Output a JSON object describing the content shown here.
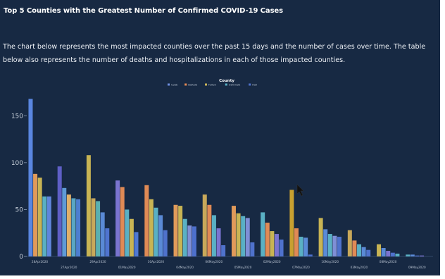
{
  "page": {
    "title": "Top 5 Counties with the Greatest Number of Confirmed COVID-19 Cases",
    "description": "The chart below represents the most impacted counties over the past 15 days and the number of cases over time. The table below also represents the number of deaths and hospitalizations in each of those impacted counties."
  },
  "chart_data": {
    "type": "bar",
    "legend_title": "County",
    "legend_position": "top-center",
    "categories": [
      "28Apr2020",
      "27Apr2020",
      "29Apr2020",
      "01May2020",
      "30Apr2020",
      "04May2020",
      "06May2020",
      "05May2020",
      "02May2020",
      "07May2020",
      "10May2020",
      "03May2020",
      "08May2020",
      "09May2020"
    ],
    "category_label_visible": [
      true,
      true,
      true,
      true,
      true,
      true,
      true,
      true,
      true,
      true,
      true,
      true,
      true,
      true
    ],
    "series": [
      {
        "name": "Cobb",
        "color": "#6f8fe0",
        "values": [
          168,
          96,
          108,
          81,
          76,
          55,
          66,
          54,
          47,
          71,
          41,
          28,
          13,
          2
        ]
      },
      {
        "name": "DeKalb",
        "color": "#e58a55",
        "values": [
          88,
          73,
          62,
          74,
          61,
          54,
          55,
          46,
          36,
          30,
          29,
          17,
          9,
          2
        ]
      },
      {
        "name": "Fulton",
        "color": "#c9b45a",
        "values": [
          84,
          66,
          59,
          50,
          52,
          40,
          44,
          43,
          27,
          21,
          24,
          13,
          6,
          1
        ]
      },
      {
        "name": "Gwinnett",
        "color": "#58b0c4",
        "values": [
          64,
          62,
          47,
          40,
          44,
          33,
          30,
          41,
          24,
          20,
          22,
          10,
          4,
          1
        ]
      },
      {
        "name": "Hall",
        "color": "#4f72cc",
        "values": [
          64,
          61,
          30,
          26,
          28,
          32,
          12,
          15,
          18,
          2,
          21,
          7,
          3,
          0
        ]
      }
    ],
    "bar_colors_by_group": [
      [
        "#5a86e0",
        "#e09a5a",
        "#c8b454",
        "#5ab0c2",
        "#5f86dc"
      ],
      [
        "#5f5fc6",
        "#5f9ad6",
        "#e0b06a",
        "#5aa6c2",
        "#4d7ecf"
      ],
      [
        "#c8b454",
        "#c8a85a",
        "#5ab0b0",
        "#5a8ad6",
        "#4f74d0"
      ],
      [
        "#7a74d0",
        "#e08a55",
        "#5ab0c4",
        "#c8b454",
        "#4f78d2"
      ],
      [
        "#e08a55",
        "#c8b454",
        "#5ab0c4",
        "#5a8ad6",
        "#4f72cc"
      ],
      [
        "#e09a5a",
        "#c8b454",
        "#5ab0c4",
        "#7f8fd6",
        "#4d70cc"
      ],
      [
        "#c8a85a",
        "#e08a55",
        "#5ab0c4",
        "#7a74d0",
        "#4f72cc"
      ],
      [
        "#e09a5a",
        "#c8b454",
        "#5ab0c4",
        "#7f8fd6",
        "#4f72cc"
      ],
      [
        "#5ab0c4",
        "#e08a55",
        "#c8b454",
        "#7a74d0",
        "#4f72cc"
      ],
      [
        "#c8a030",
        "#e08a55",
        "#5ab0c4",
        "#5a8ad6",
        "#4d70cc"
      ],
      [
        "#c8b454",
        "#5a8ad6",
        "#5ab0c4",
        "#7f8fd6",
        "#4f72cc"
      ],
      [
        "#c8a85a",
        "#e08a55",
        "#5ab0c4",
        "#5a8ad6",
        "#4f72cc"
      ],
      [
        "#c8b454",
        "#5a8ad6",
        "#7a74d0",
        "#4f72cc",
        "#5ab0c4"
      ],
      [
        "#5ab0c4",
        "#5a8ad6",
        "#4f72cc",
        "#7a74d0",
        "#4d70cc"
      ]
    ],
    "ylim": [
      0,
      175
    ],
    "yticks": [
      0,
      50,
      100,
      150
    ],
    "ytick_labels": [
      "0",
      "50",
      "100",
      "150"
    ],
    "xlabel": "",
    "ylabel": "",
    "grid": false
  },
  "style": {
    "panel_bg": "#172943",
    "text": "#ffffff",
    "tick_text": "#c9d1dc",
    "axis": "#8fa0b8"
  }
}
